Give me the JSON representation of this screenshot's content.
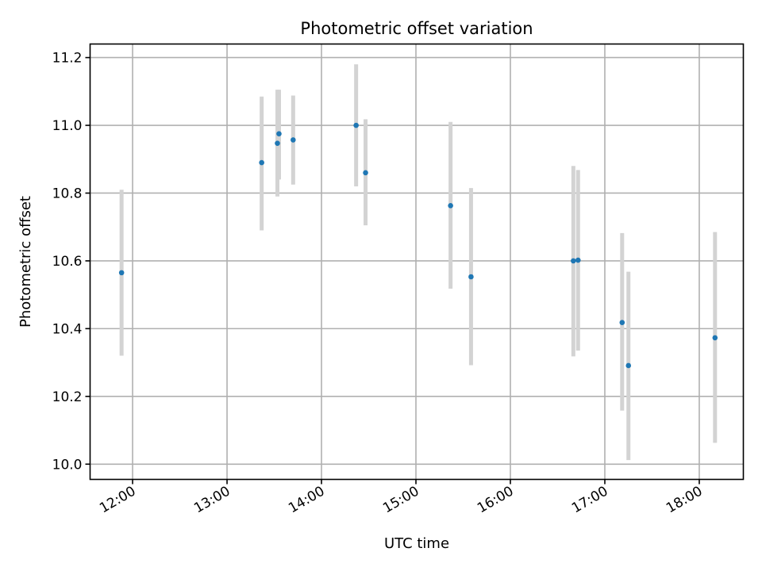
{
  "chart_data": {
    "type": "scatter",
    "title": "Photometric offset variation",
    "xlabel": "UTC time",
    "ylabel": "Photometric offset",
    "x_ticks": [
      "12:00",
      "13:00",
      "14:00",
      "15:00",
      "16:00",
      "17:00",
      "18:00"
    ],
    "y_ticks": [
      "10.0",
      "10.2",
      "10.4",
      "10.6",
      "10.8",
      "11.0",
      "11.2"
    ],
    "xlim": [
      "11:33",
      "18:28"
    ],
    "ylim": [
      9.955,
      11.24
    ],
    "grid": true,
    "marker_color": "#1f77b4",
    "errorbar_color": "#d3d3d3",
    "points": [
      {
        "x": "11:53",
        "y": 10.565,
        "ylo": 10.32,
        "yhi": 10.81
      },
      {
        "x": "13:22",
        "y": 10.89,
        "ylo": 10.69,
        "yhi": 11.085
      },
      {
        "x": "13:32",
        "y": 10.947,
        "ylo": 10.79,
        "yhi": 11.105
      },
      {
        "x": "13:33",
        "y": 10.975,
        "ylo": 10.84,
        "yhi": 11.105
      },
      {
        "x": "13:42",
        "y": 10.957,
        "ylo": 10.825,
        "yhi": 11.088
      },
      {
        "x": "14:22",
        "y": 11.0,
        "ylo": 10.82,
        "yhi": 11.18
      },
      {
        "x": "14:28",
        "y": 10.86,
        "ylo": 10.705,
        "yhi": 11.018
      },
      {
        "x": "15:22",
        "y": 10.763,
        "ylo": 10.518,
        "yhi": 11.01
      },
      {
        "x": "15:35",
        "y": 10.553,
        "ylo": 10.292,
        "yhi": 10.815
      },
      {
        "x": "16:40",
        "y": 10.6,
        "ylo": 10.318,
        "yhi": 10.88
      },
      {
        "x": "16:43",
        "y": 10.602,
        "ylo": 10.335,
        "yhi": 10.868
      },
      {
        "x": "17:11",
        "y": 10.418,
        "ylo": 10.158,
        "yhi": 10.682
      },
      {
        "x": "17:15",
        "y": 10.291,
        "ylo": 10.012,
        "yhi": 10.568
      },
      {
        "x": "18:10",
        "y": 10.373,
        "ylo": 10.063,
        "yhi": 10.685
      }
    ]
  }
}
